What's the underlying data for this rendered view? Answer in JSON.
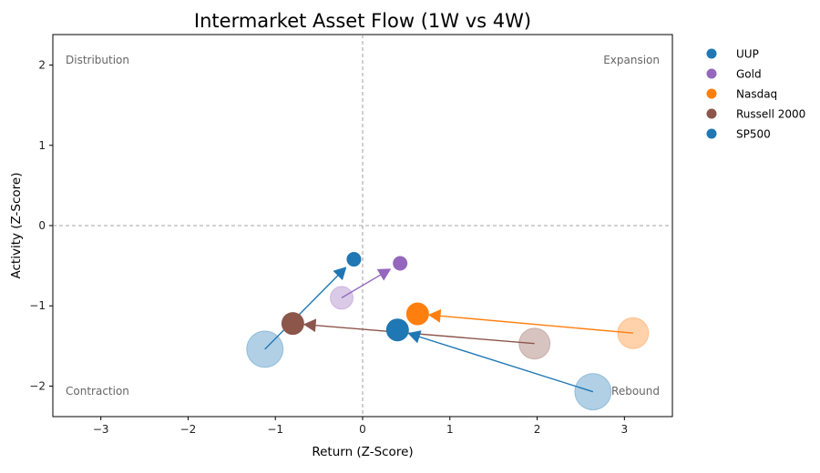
{
  "chart_data": {
    "type": "scatter",
    "title": "Intermarket Asset Flow (1W vs 4W)",
    "xlabel": "Return (Z-Score)",
    "ylabel": "Activity (Z-Score)",
    "xlim": [
      -3.55,
      3.55
    ],
    "ylim": [
      -2.38,
      2.38
    ],
    "xticks": [
      -3,
      -2,
      -1,
      0,
      1,
      2,
      3
    ],
    "yticks": [
      -2,
      -1,
      0,
      1,
      2
    ],
    "xtick_labels": [
      "−3",
      "−2",
      "−1",
      "0",
      "1",
      "2",
      "3"
    ],
    "ytick_labels": [
      "−2",
      "−1",
      "0",
      "1",
      "2"
    ],
    "reference_lines": {
      "x": 0,
      "y": 0,
      "style": "dashed"
    },
    "grid": false,
    "legend_position": "outside-right",
    "quadrants": {
      "top_left": "Distribution",
      "top_right": "Expansion",
      "bottom_left": "Contraction",
      "bottom_right": "Rebound"
    },
    "series": [
      {
        "name": "UUP",
        "color": "#1f77b4",
        "from": [
          -1.12,
          -1.54
        ],
        "to": [
          -0.1,
          -0.42
        ]
      },
      {
        "name": "Gold",
        "color": "#9467bd",
        "from": [
          -0.24,
          -0.9
        ],
        "to": [
          0.43,
          -0.47
        ]
      },
      {
        "name": "Nasdaq",
        "color": "#ff7f0e",
        "from": [
          3.1,
          -1.34
        ],
        "to": [
          0.63,
          -1.1
        ]
      },
      {
        "name": "Russell 2000",
        "color": "#8c564b",
        "from": [
          1.97,
          -1.47
        ],
        "to": [
          -0.8,
          -1.22
        ]
      },
      {
        "name": "SP500",
        "color": "#1f77b4",
        "from": [
          2.64,
          -2.07
        ],
        "to": [
          0.4,
          -1.3
        ]
      }
    ]
  }
}
